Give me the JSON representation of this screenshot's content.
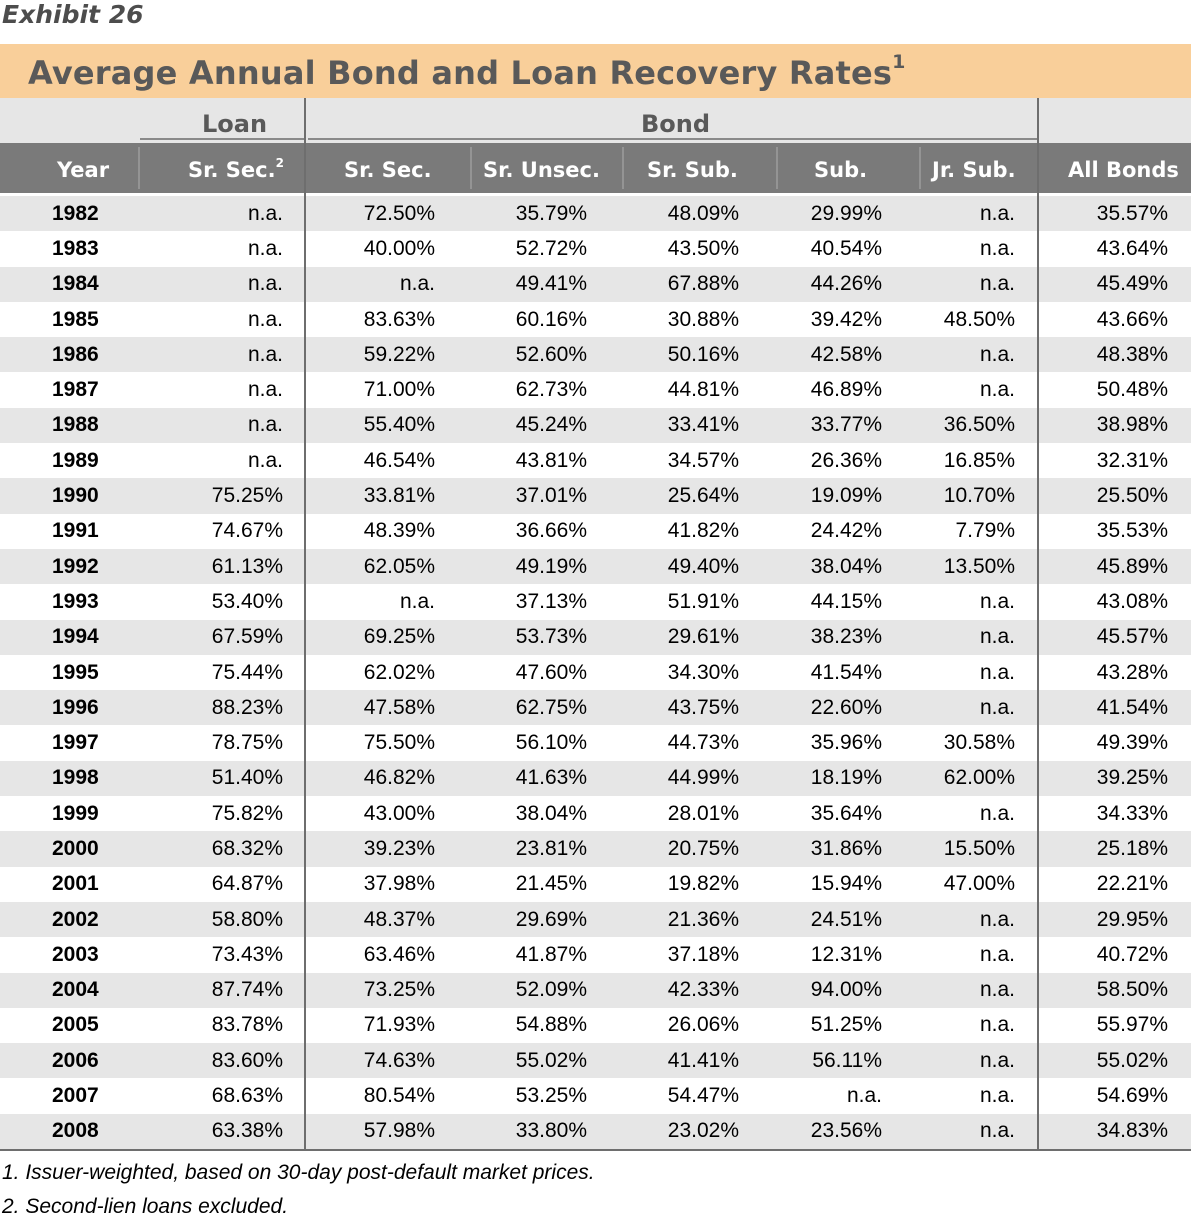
{
  "exhibit_label": "Exhibit 26",
  "title": "Average Annual Bond and Loan Recovery Rates",
  "title_sup": "1",
  "groups": {
    "loan": "Loan",
    "bond": "Bond"
  },
  "columns": [
    "Year",
    "Sr. Sec.",
    "Sr. Sec.",
    "Sr. Unsec.",
    "Sr. Sub.",
    "Sub.",
    "Jr. Sub.",
    "All Bonds"
  ],
  "loan_col_sup": "2",
  "rows": [
    [
      "1982",
      "n.a.",
      "72.50%",
      "35.79%",
      "48.09%",
      "29.99%",
      "n.a.",
      "35.57%"
    ],
    [
      "1983",
      "n.a.",
      "40.00%",
      "52.72%",
      "43.50%",
      "40.54%",
      "n.a.",
      "43.64%"
    ],
    [
      "1984",
      "n.a.",
      "n.a.",
      "49.41%",
      "67.88%",
      "44.26%",
      "n.a.",
      "45.49%"
    ],
    [
      "1985",
      "n.a.",
      "83.63%",
      "60.16%",
      "30.88%",
      "39.42%",
      "48.50%",
      "43.66%"
    ],
    [
      "1986",
      "n.a.",
      "59.22%",
      "52.60%",
      "50.16%",
      "42.58%",
      "n.a.",
      "48.38%"
    ],
    [
      "1987",
      "n.a.",
      "71.00%",
      "62.73%",
      "44.81%",
      "46.89%",
      "n.a.",
      "50.48%"
    ],
    [
      "1988",
      "n.a.",
      "55.40%",
      "45.24%",
      "33.41%",
      "33.77%",
      "36.50%",
      "38.98%"
    ],
    [
      "1989",
      "n.a.",
      "46.54%",
      "43.81%",
      "34.57%",
      "26.36%",
      "16.85%",
      "32.31%"
    ],
    [
      "1990",
      "75.25%",
      "33.81%",
      "37.01%",
      "25.64%",
      "19.09%",
      "10.70%",
      "25.50%"
    ],
    [
      "1991",
      "74.67%",
      "48.39%",
      "36.66%",
      "41.82%",
      "24.42%",
      "7.79%",
      "35.53%"
    ],
    [
      "1992",
      "61.13%",
      "62.05%",
      "49.19%",
      "49.40%",
      "38.04%",
      "13.50%",
      "45.89%"
    ],
    [
      "1993",
      "53.40%",
      "n.a.",
      "37.13%",
      "51.91%",
      "44.15%",
      "n.a.",
      "43.08%"
    ],
    [
      "1994",
      "67.59%",
      "69.25%",
      "53.73%",
      "29.61%",
      "38.23%",
      "n.a.",
      "45.57%"
    ],
    [
      "1995",
      "75.44%",
      "62.02%",
      "47.60%",
      "34.30%",
      "41.54%",
      "n.a.",
      "43.28%"
    ],
    [
      "1996",
      "88.23%",
      "47.58%",
      "62.75%",
      "43.75%",
      "22.60%",
      "n.a.",
      "41.54%"
    ],
    [
      "1997",
      "78.75%",
      "75.50%",
      "56.10%",
      "44.73%",
      "35.96%",
      "30.58%",
      "49.39%"
    ],
    [
      "1998",
      "51.40%",
      "46.82%",
      "41.63%",
      "44.99%",
      "18.19%",
      "62.00%",
      "39.25%"
    ],
    [
      "1999",
      "75.82%",
      "43.00%",
      "38.04%",
      "28.01%",
      "35.64%",
      "n.a.",
      "34.33%"
    ],
    [
      "2000",
      "68.32%",
      "39.23%",
      "23.81%",
      "20.75%",
      "31.86%",
      "15.50%",
      "25.18%"
    ],
    [
      "2001",
      "64.87%",
      "37.98%",
      "21.45%",
      "19.82%",
      "15.94%",
      "47.00%",
      "22.21%"
    ],
    [
      "2002",
      "58.80%",
      "48.37%",
      "29.69%",
      "21.36%",
      "24.51%",
      "n.a.",
      "29.95%"
    ],
    [
      "2003",
      "73.43%",
      "63.46%",
      "41.87%",
      "37.18%",
      "12.31%",
      "n.a.",
      "40.72%"
    ],
    [
      "2004",
      "87.74%",
      "73.25%",
      "52.09%",
      "42.33%",
      "94.00%",
      "n.a.",
      "58.50%"
    ],
    [
      "2005",
      "83.78%",
      "71.93%",
      "54.88%",
      "26.06%",
      "51.25%",
      "n.a.",
      "55.97%"
    ],
    [
      "2006",
      "83.60%",
      "74.63%",
      "55.02%",
      "41.41%",
      "56.11%",
      "n.a.",
      "55.02%"
    ],
    [
      "2007",
      "68.63%",
      "80.54%",
      "53.25%",
      "54.47%",
      "n.a.",
      "n.a.",
      "54.69%"
    ],
    [
      "2008",
      "63.38%",
      "57.98%",
      "33.80%",
      "23.02%",
      "23.56%",
      "n.a.",
      "34.83%"
    ]
  ],
  "footnotes": [
    "1. Issuer-weighted, based on 30-day post-default market prices.",
    "2. Second-lien loans excluded."
  ],
  "colors": {
    "title_band": "#f9cf9a",
    "header_band": "#7a7a7a",
    "stripe": "#e6e6e6"
  }
}
